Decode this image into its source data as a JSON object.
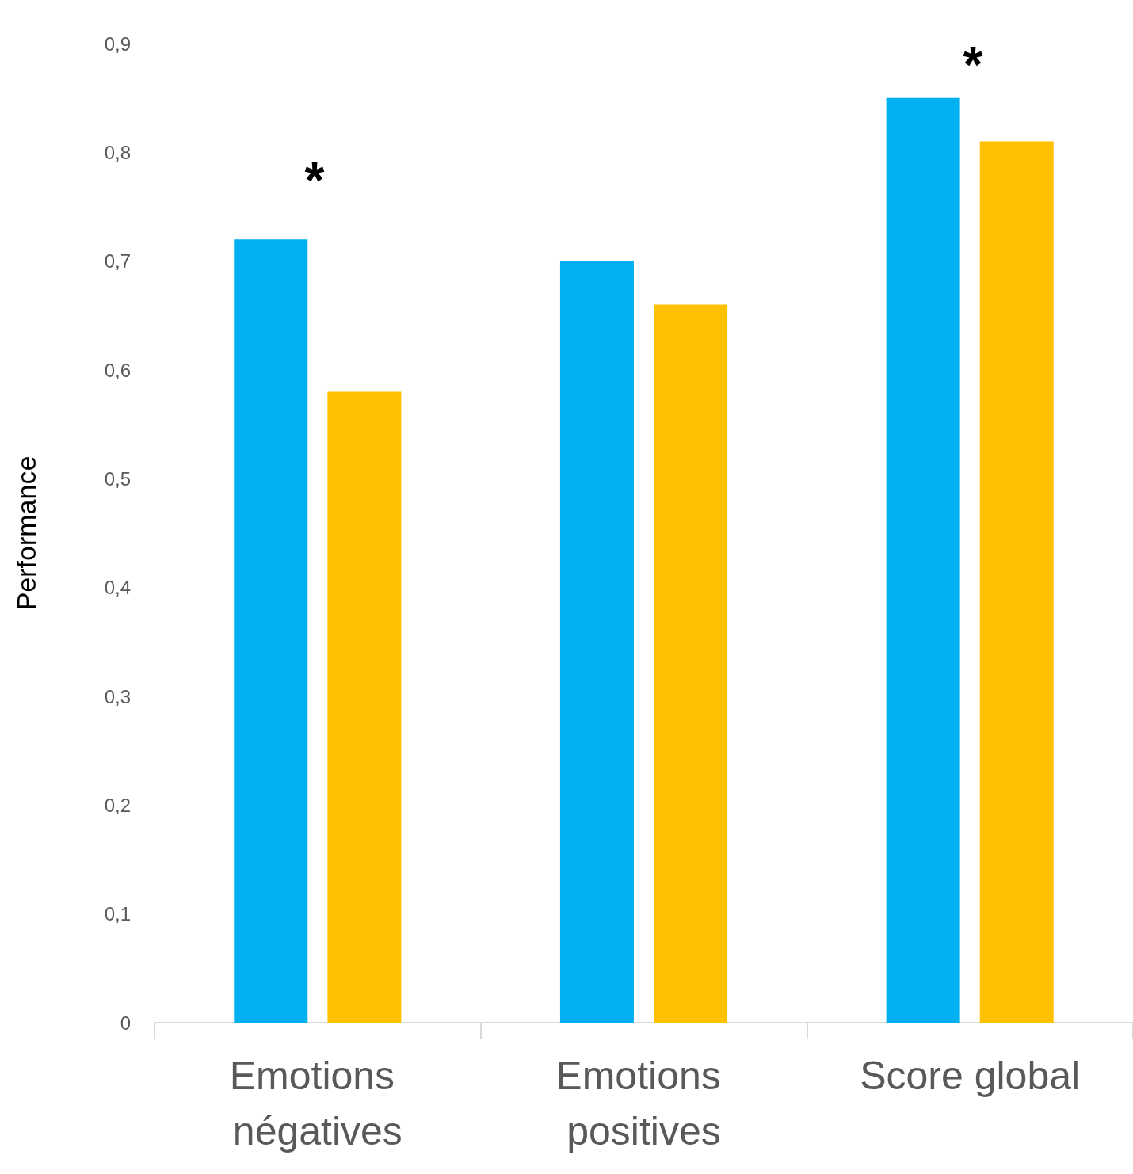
{
  "chart_data": {
    "type": "bar",
    "ylabel": "Performance",
    "categories": [
      "Emotions négatives",
      "Emotions positives",
      "Score global"
    ],
    "series": [
      {
        "color": "#00b0f0",
        "values": [
          0.72,
          0.7,
          0.85
        ]
      },
      {
        "color": "#ffc000",
        "values": [
          0.58,
          0.66,
          0.81
        ]
      }
    ],
    "ylim": [
      0,
      0.9
    ],
    "yticks": [
      {
        "value": 0,
        "label": "0"
      },
      {
        "value": 0.1,
        "label": "0,1"
      },
      {
        "value": 0.2,
        "label": "0,2"
      },
      {
        "value": 0.3,
        "label": "0,3"
      },
      {
        "value": 0.4,
        "label": "0,4"
      },
      {
        "value": 0.5,
        "label": "0,5"
      },
      {
        "value": 0.6,
        "label": "0,6"
      },
      {
        "value": 0.7,
        "label": "0,7"
      },
      {
        "value": 0.8,
        "label": "0,8"
      },
      {
        "value": 0.9,
        "label": "0,9"
      }
    ],
    "annotations": [
      "*",
      "*"
    ],
    "grid": false
  }
}
